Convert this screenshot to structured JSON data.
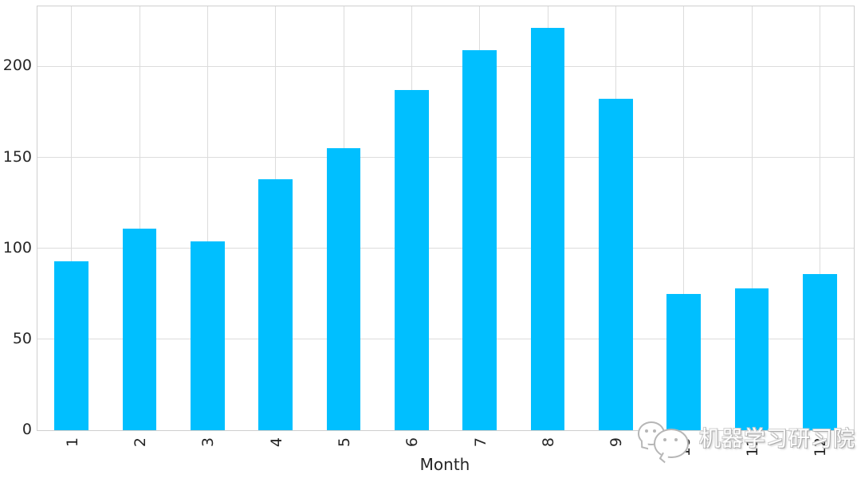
{
  "chart_data": {
    "type": "bar",
    "title": "",
    "categories": [
      "1",
      "2",
      "3",
      "4",
      "5",
      "6",
      "7",
      "8",
      "9",
      "10",
      "11",
      "12"
    ],
    "values": [
      93,
      111,
      104,
      138,
      155,
      187,
      209,
      221,
      182,
      75,
      78,
      86
    ],
    "xlabel": "Month",
    "ylabel": "",
    "yticks": [
      0,
      50,
      100,
      150,
      200
    ],
    "ytick_labels": [
      "0",
      "50",
      "100",
      "150",
      "200"
    ],
    "ylim": [
      0,
      233
    ],
    "bar_color": "#00BFFF",
    "bar_width_fraction": 0.5,
    "grid": "both",
    "grid_color": "#dcdcdc",
    "spine_color": "#cfcfcf",
    "text_color": "#262626",
    "legend": "none",
    "background": "#ffffff"
  },
  "watermark": {
    "icon": "wechat-logo",
    "text": "机器学习研习院",
    "color": "#bdbdbd"
  }
}
